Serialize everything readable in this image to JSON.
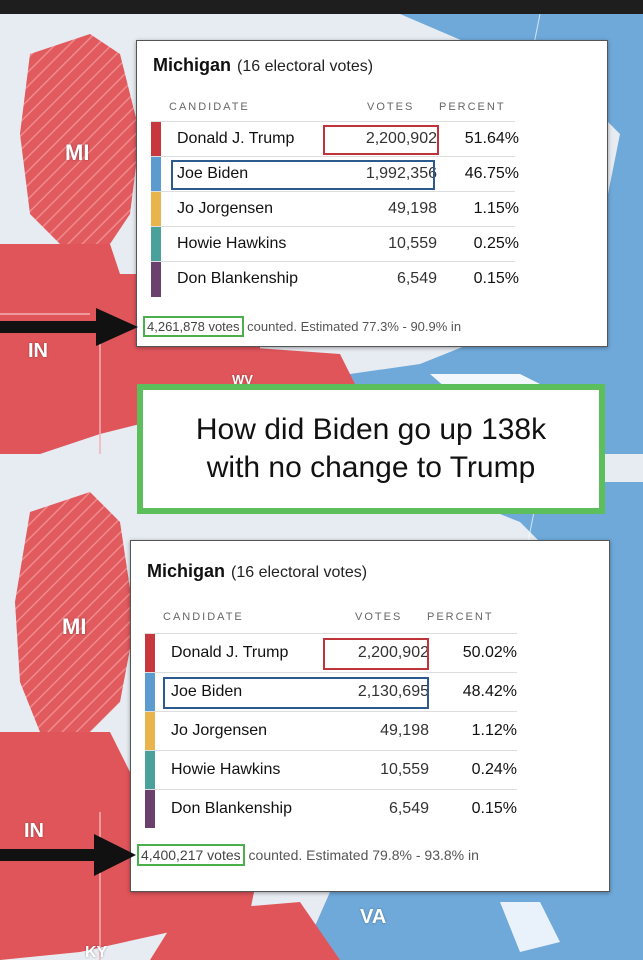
{
  "colors": {
    "trump": "#c7373d",
    "biden": "#5b9bd0",
    "jorgensen": "#e9b44c",
    "hawkins": "#4aa19b",
    "blankenship": "#6b3f6e",
    "map_red": "#e0555a",
    "map_blue": "#6fa9da",
    "water": "#e7ecf2",
    "highlight_green": "#5cbf5c"
  },
  "map_labels_top": [
    "MI",
    "IN",
    "WV"
  ],
  "map_labels_bottom": [
    "MI",
    "IN",
    "VA",
    "KY"
  ],
  "question": {
    "text": "How did Biden go up 138k\nwith no change to Trump"
  },
  "before": {
    "state": "Michigan",
    "subtitle": "(16 electoral votes)",
    "headers": {
      "candidate": "CANDIDATE",
      "votes": "VOTES",
      "percent": "PERCENT"
    },
    "rows": [
      {
        "candidate": "Donald J. Trump",
        "votes": "2,200,902",
        "percent": "51.64%"
      },
      {
        "candidate": "Joe Biden",
        "votes": "1,992,356",
        "percent": "46.75%"
      },
      {
        "candidate": "Jo Jorgensen",
        "votes": "49,198",
        "percent": "1.15%"
      },
      {
        "candidate": "Howie Hawkins",
        "votes": "10,559",
        "percent": "0.25%"
      },
      {
        "candidate": "Don Blankenship",
        "votes": "6,549",
        "percent": "0.15%"
      }
    ],
    "footer": {
      "votes_counted": "4,261,878 votes",
      "rest": " counted. Estimated 77.3% - 90.9% in"
    }
  },
  "after": {
    "state": "Michigan",
    "subtitle": "(16 electoral votes)",
    "headers": {
      "candidate": "CANDIDATE",
      "votes": "VOTES",
      "percent": "PERCENT"
    },
    "rows": [
      {
        "candidate": "Donald J. Trump",
        "votes": "2,200,902",
        "percent": "50.02%"
      },
      {
        "candidate": "Joe Biden",
        "votes": "2,130,695",
        "percent": "48.42%"
      },
      {
        "candidate": "Jo Jorgensen",
        "votes": "49,198",
        "percent": "1.12%"
      },
      {
        "candidate": "Howie Hawkins",
        "votes": "10,559",
        "percent": "0.24%"
      },
      {
        "candidate": "Don Blankenship",
        "votes": "6,549",
        "percent": "0.15%"
      }
    ],
    "footer": {
      "votes_counted": "4,400,217 votes",
      "rest": " counted. Estimated 79.8% - 93.8% in"
    }
  }
}
